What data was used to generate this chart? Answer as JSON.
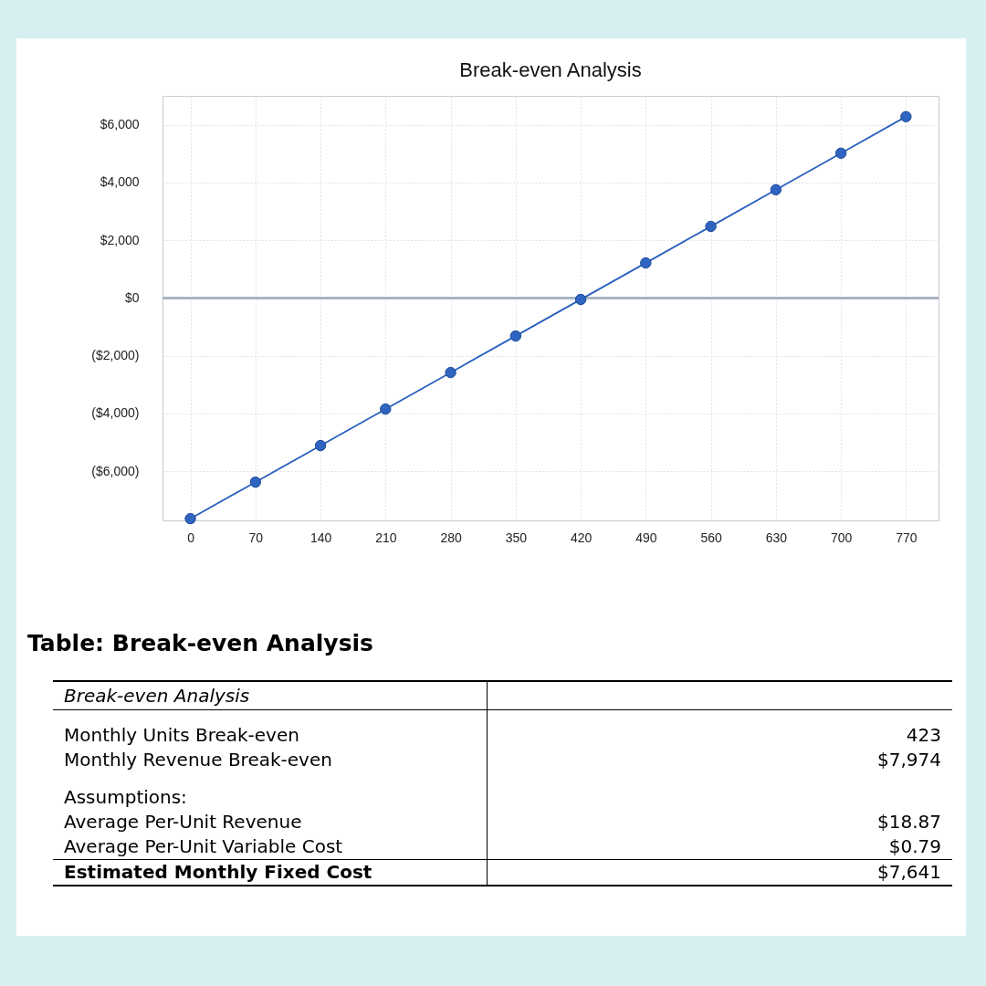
{
  "chart_data": [
    {
      "type": "line",
      "title": "Break-even Analysis",
      "x": [
        0,
        70,
        140,
        210,
        280,
        350,
        420,
        490,
        560,
        630,
        700,
        770
      ],
      "series": [
        {
          "color": "#2f64c0",
          "values": [
            -7640,
            -6375,
            -5110,
            -3845,
            -2580,
            -1315,
            -50,
            1215,
            2480,
            3750,
            5015,
            6280
          ]
        }
      ],
      "xlim": [
        -30,
        805
      ],
      "xticks": [
        0,
        70,
        140,
        210,
        280,
        350,
        420,
        490,
        560,
        630,
        700,
        770
      ],
      "ylim": [
        -7700,
        7000
      ],
      "yticks": [
        {
          "value": -6000,
          "label": "($6,000)"
        },
        {
          "value": -4000,
          "label": "($4,000)"
        },
        {
          "value": -2000,
          "label": "($2,000)"
        },
        {
          "value": 0,
          "label": "$0"
        },
        {
          "value": 2000,
          "label": "$2,000"
        },
        {
          "value": 4000,
          "label": "$4,000"
        },
        {
          "value": 6000,
          "label": "$6,000"
        }
      ],
      "ref_lines": [
        {
          "axis": "y",
          "value": 0,
          "color": "#a9b4c4"
        }
      ],
      "grid": true,
      "marker": "circle",
      "legend": false
    },
    {
      "type": "other",
      "title": "Table: Break-even Analysis",
      "annotations": [
        "Break-even Analysis",
        "Monthly Units Break-even",
        "423",
        "Monthly Revenue Break-even",
        "$7,974",
        "Assumptions:",
        "Average Per-Unit Revenue",
        "$18.87",
        "Average Per-Unit Variable Cost",
        "$0.79",
        "Estimated Monthly Fixed Cost",
        "$7,641"
      ]
    }
  ]
}
